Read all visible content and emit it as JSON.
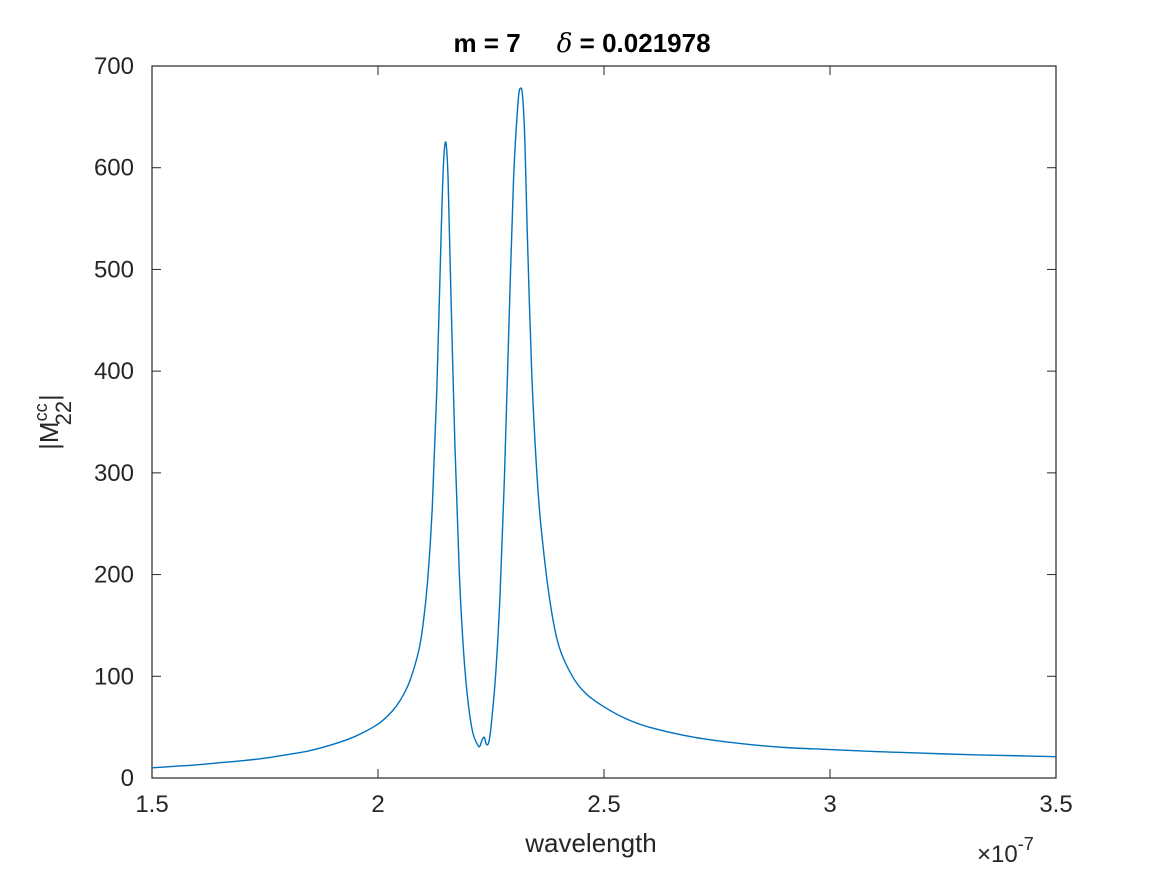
{
  "chart_data": {
    "type": "line",
    "title": {
      "m_part": "m = 7",
      "delta_symbol": "δ",
      "delta_part": " = 0.021978"
    },
    "xlabel": "wavelength",
    "ylabel": {
      "base": "|M",
      "superscript": "cc",
      "subscript": "22",
      "close": "|"
    },
    "x_exponent": {
      "prefix": "×10",
      "power": "-7"
    },
    "xlim": [
      1.5,
      3.5
    ],
    "ylim": [
      0,
      700
    ],
    "x_ticks": [
      "1.5",
      "2",
      "2.5",
      "3",
      "3.5"
    ],
    "y_ticks": [
      "0",
      "100",
      "200",
      "300",
      "400",
      "500",
      "600",
      "700"
    ],
    "grid": false,
    "box": true,
    "line_color": "#0072BD",
    "x_unit_scale": "1e-7",
    "series": [
      {
        "x": [
          1.5,
          1.55,
          1.6,
          1.65,
          1.7,
          1.75,
          1.8,
          1.85,
          1.9,
          1.95,
          2.0,
          2.03,
          2.05,
          2.07,
          2.09,
          2.1,
          2.11,
          2.12,
          2.13,
          2.14,
          2.145,
          2.15,
          2.155,
          2.16,
          2.17,
          2.18,
          2.19,
          2.2,
          2.21,
          2.22,
          2.225,
          2.23,
          2.235,
          2.24,
          2.245,
          2.25,
          2.26,
          2.27,
          2.28,
          2.29,
          2.3,
          2.31,
          2.315,
          2.32,
          2.325,
          2.33,
          2.34,
          2.35,
          2.36,
          2.38,
          2.4,
          2.43,
          2.46,
          2.5,
          2.55,
          2.6,
          2.7,
          2.8,
          2.9,
          3.0,
          3.1,
          3.2,
          3.3,
          3.4,
          3.5
        ],
        "y": [
          10,
          11.5,
          13,
          15,
          17,
          19.5,
          23,
          27,
          33,
          41,
          53,
          65,
          77,
          95,
          125,
          152,
          195,
          265,
          380,
          540,
          605,
          625,
          590,
          500,
          330,
          200,
          120,
          72,
          44,
          33,
          31,
          37,
          40,
          33,
          35,
          50,
          100,
          180,
          300,
          450,
          590,
          665,
          678,
          670,
          625,
          540,
          400,
          310,
          250,
          175,
          130,
          100,
          83,
          70,
          58,
          50,
          40,
          34,
          30,
          28,
          26,
          24.5,
          23,
          22,
          21
        ]
      }
    ]
  }
}
